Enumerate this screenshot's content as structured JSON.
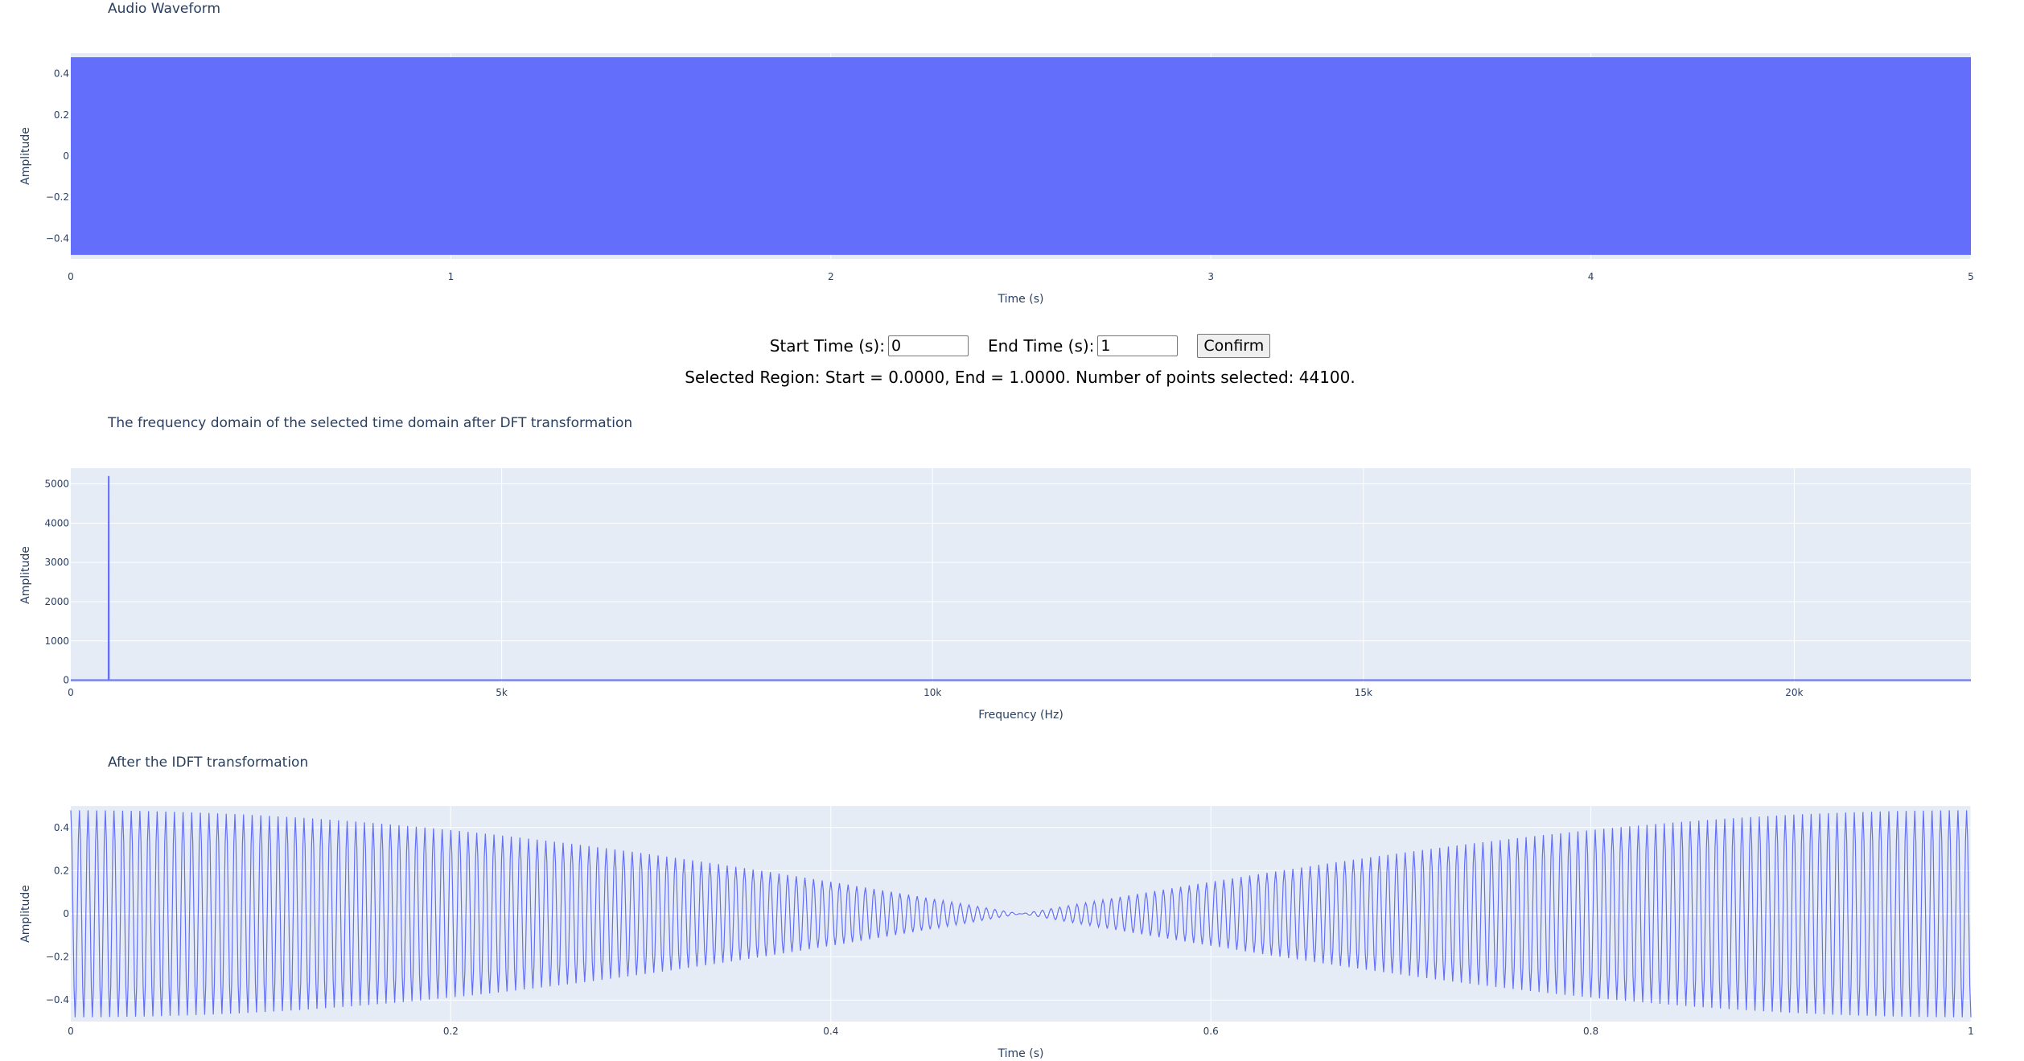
{
  "controls": {
    "start_label": "Start Time (s):",
    "start_value": "0",
    "end_label": "End Time (s):",
    "end_value": "1",
    "confirm_label": "Confirm",
    "status": "Selected Region: Start = 0.0000, End = 1.0000. Number of points selected: 44100."
  },
  "colors": {
    "trace": "#636efa",
    "plot_bg": "#e5ecf6",
    "grid": "#ffffff",
    "text": "#2a3f5f"
  },
  "chart_data": [
    {
      "type": "line",
      "title": "Audio Waveform",
      "xlabel": "Time (s)",
      "ylabel": "Amplitude",
      "xlim": [
        0,
        5
      ],
      "ylim": [
        -0.5,
        0.5
      ],
      "xticks": [
        0,
        1,
        2,
        3,
        4,
        5
      ],
      "xtick_labels": [
        "0",
        "1",
        "2",
        "3",
        "4",
        "5"
      ],
      "yticks": [
        0.4,
        0.2,
        0,
        -0.2,
        -0.4
      ],
      "ytick_labels": [
        "0.4",
        "0.2",
        "0",
        "−0.2",
        "−0.4"
      ],
      "grid": true,
      "series": [
        {
          "amplitude": 0.48,
          "x_range": [
            0,
            5
          ],
          "appearance": "dense oscillation filling the band"
        }
      ]
    },
    {
      "type": "line",
      "title": "The frequency domain of the selected time domain after DFT transformation",
      "xlabel": "Frequency (Hz)",
      "ylabel": "Amplitude",
      "xlim": [
        0,
        22050
      ],
      "ylim": [
        -50,
        5400
      ],
      "xticks": [
        0,
        5000,
        10000,
        15000,
        20000
      ],
      "xtick_labels": [
        "0",
        "5k",
        "10k",
        "15k",
        "20k"
      ],
      "yticks": [
        5000,
        4000,
        3000,
        2000,
        1000,
        0
      ],
      "ytick_labels": [
        "5000",
        "4000",
        "3000",
        "2000",
        "1000",
        "0"
      ],
      "grid": true,
      "series": [
        {
          "x": [
            0,
            438,
            440,
            442,
            22050
          ],
          "y": [
            0,
            0,
            5200,
            0,
            0
          ]
        }
      ]
    },
    {
      "type": "line",
      "title": "After the IDFT transformation",
      "xlabel": "Time (s)",
      "ylabel": "Amplitude",
      "xlim": [
        0,
        1
      ],
      "ylim": [
        -0.5,
        0.5
      ],
      "xticks": [
        0,
        0.2,
        0.4,
        0.6,
        0.8,
        1
      ],
      "xtick_labels": [
        "0",
        "0.2",
        "0.4",
        "0.6",
        "0.8",
        "1"
      ],
      "yticks": [
        0.4,
        0.2,
        0,
        -0.2,
        -0.4
      ],
      "ytick_labels": [
        "0.4",
        "0.2",
        "0",
        "−0.2",
        "−0.4"
      ],
      "grid": true,
      "series": [
        {
          "amplitude_envelope": "0.48 × |cos(π·t)|",
          "oscillation_count": 220,
          "x_range": [
            0,
            1
          ]
        }
      ]
    }
  ]
}
